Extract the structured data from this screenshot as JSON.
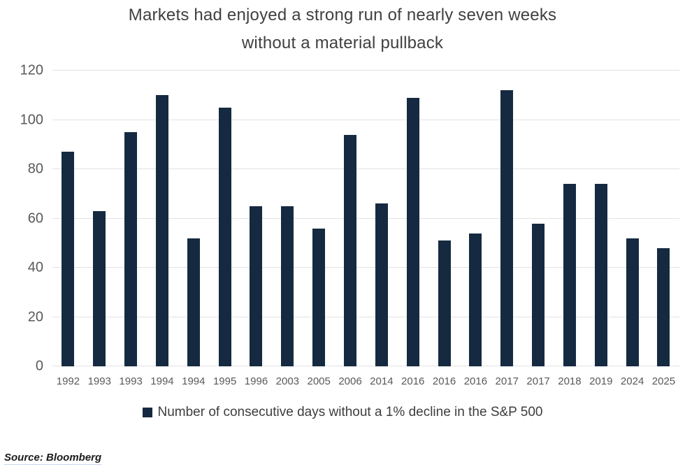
{
  "title": {
    "line1": "Markets had enjoyed a strong run of nearly seven weeks",
    "line2": "without a material pullback"
  },
  "chart_data": {
    "type": "bar",
    "title": "Markets had enjoyed a strong run of nearly seven weeks without a material pullback",
    "categories": [
      "1992",
      "1993",
      "1993",
      "1994",
      "1994",
      "1995",
      "1996",
      "2003",
      "2005",
      "2006",
      "2014",
      "2016",
      "2016",
      "2016",
      "2017",
      "2017",
      "2018",
      "2019",
      "2024",
      "2025"
    ],
    "values": [
      87,
      63,
      95,
      110,
      52,
      105,
      65,
      65,
      56,
      94,
      66,
      109,
      51,
      54,
      112,
      58,
      74,
      74,
      52,
      48
    ],
    "xlabel": "",
    "ylabel": "",
    "ylim": [
      0,
      120
    ],
    "y_ticks": [
      0,
      20,
      40,
      60,
      80,
      100,
      120
    ],
    "grid": "horizontal",
    "legend_position": "bottom",
    "legend_label": "Number of consecutive days without a 1% decline in the S&P 500",
    "bar_color": "#152a40",
    "gridline_color": "#e2e2e2",
    "axis_text_color": "#595959"
  },
  "source_note": "Source: Bloomberg"
}
